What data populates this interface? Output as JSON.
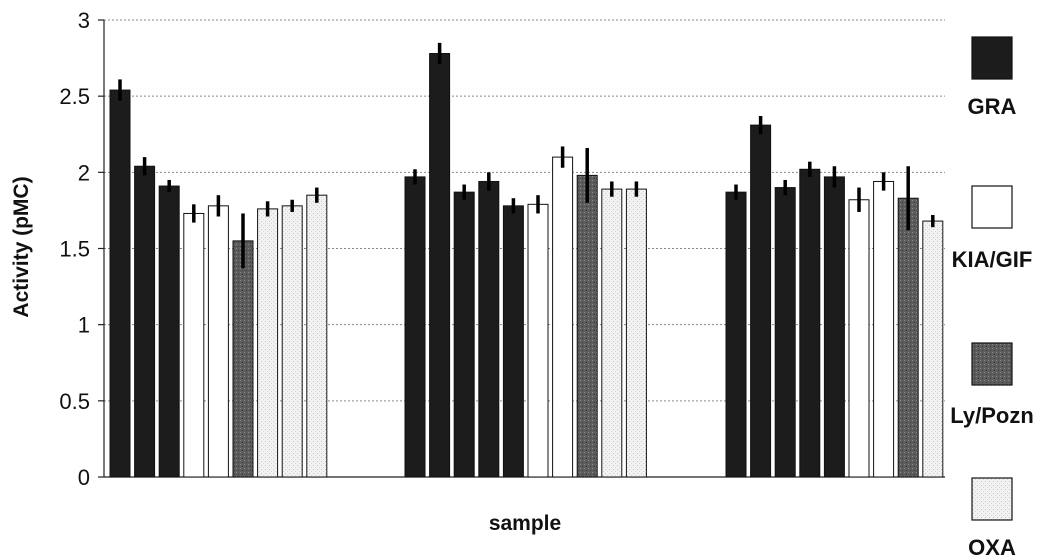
{
  "chart_data": {
    "type": "bar",
    "title": "",
    "xlabel": "sample",
    "ylabel": "Activity (pMC)",
    "ylim": [
      0,
      3
    ],
    "yticks": [
      "0",
      "0.5",
      "1",
      "1.5",
      "2",
      "2.5",
      "3"
    ],
    "grid": true,
    "legend_position": "right",
    "series": [
      {
        "name": "GRA",
        "color": "#1c1c1c"
      },
      {
        "name": "KIA/GIF",
        "color": "#ffffff"
      },
      {
        "name": "Ly/Pozn",
        "color": "#555555"
      },
      {
        "name": "OXA",
        "color": "#ececec"
      }
    ],
    "groups": [
      {
        "bars": [
          {
            "series": "GRA",
            "value": 2.54,
            "err": 0.07
          },
          {
            "series": "GRA",
            "value": 2.04,
            "err": 0.06
          },
          {
            "series": "GRA",
            "value": 1.91,
            "err": 0.04
          },
          {
            "series": "KIA/GIF",
            "value": 1.73,
            "err": 0.06
          },
          {
            "series": "KIA/GIF",
            "value": 1.78,
            "err": 0.07
          },
          {
            "series": "Ly/Pozn",
            "value": 1.55,
            "err": 0.18
          },
          {
            "series": "OXA",
            "value": 1.76,
            "err": 0.05
          },
          {
            "series": "OXA",
            "value": 1.78,
            "err": 0.04
          },
          {
            "series": "OXA",
            "value": 1.85,
            "err": 0.05
          }
        ]
      },
      {
        "bars": [
          {
            "series": "GRA",
            "value": 1.97,
            "err": 0.05
          },
          {
            "series": "GRA",
            "value": 2.78,
            "err": 0.07
          },
          {
            "series": "GRA",
            "value": 1.87,
            "err": 0.05
          },
          {
            "series": "GRA",
            "value": 1.94,
            "err": 0.06
          },
          {
            "series": "GRA",
            "value": 1.78,
            "err": 0.05
          },
          {
            "series": "KIA/GIF",
            "value": 1.79,
            "err": 0.06
          },
          {
            "series": "KIA/GIF",
            "value": 2.1,
            "err": 0.07
          },
          {
            "series": "Ly/Pozn",
            "value": 1.98,
            "err": 0.18
          },
          {
            "series": "OXA",
            "value": 1.89,
            "err": 0.05
          },
          {
            "series": "OXA",
            "value": 1.89,
            "err": 0.05
          }
        ]
      },
      {
        "bars": [
          {
            "series": "GRA",
            "value": 1.87,
            "err": 0.05
          },
          {
            "series": "GRA",
            "value": 2.31,
            "err": 0.06
          },
          {
            "series": "GRA",
            "value": 1.9,
            "err": 0.05
          },
          {
            "series": "GRA",
            "value": 2.02,
            "err": 0.05
          },
          {
            "series": "GRA",
            "value": 1.97,
            "err": 0.07
          },
          {
            "series": "KIA/GIF",
            "value": 1.82,
            "err": 0.08
          },
          {
            "series": "KIA/GIF",
            "value": 1.94,
            "err": 0.06
          },
          {
            "series": "Ly/Pozn",
            "value": 1.83,
            "err": 0.21
          },
          {
            "series": "OXA",
            "value": 1.68,
            "err": 0.04
          }
        ]
      }
    ]
  }
}
